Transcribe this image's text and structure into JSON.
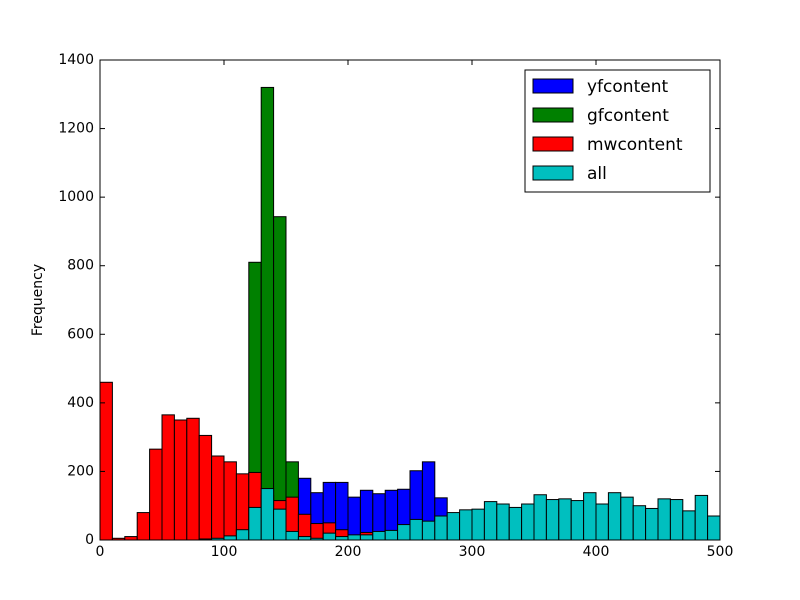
{
  "chart_data": {
    "type": "histogram",
    "bins": [
      0,
      10,
      20,
      30,
      40,
      50,
      60,
      70,
      80,
      90,
      100,
      110,
      120,
      130,
      140,
      150,
      160,
      170,
      180,
      190,
      200,
      210,
      220,
      230,
      240,
      250,
      260,
      270,
      280,
      290,
      300,
      310,
      320,
      330,
      340,
      350,
      360,
      370,
      380,
      390,
      400,
      410,
      420,
      430,
      440,
      450,
      460,
      470,
      480,
      490,
      500
    ],
    "series": [
      {
        "name": "yfcontent",
        "color": "#0000ff",
        "values": [
          0,
          0,
          0,
          0,
          0,
          0,
          0,
          0,
          0,
          0,
          0,
          0,
          0,
          0,
          0,
          110,
          180,
          138,
          168,
          168,
          125,
          145,
          135,
          145,
          148,
          202,
          228,
          123,
          0,
          0,
          0,
          0,
          0,
          0,
          0,
          0,
          0,
          0,
          0,
          0,
          0,
          0,
          0,
          0,
          0,
          0,
          0,
          0,
          0,
          0
        ]
      },
      {
        "name": "gfcontent",
        "color": "#008000",
        "values": [
          0,
          0,
          0,
          0,
          0,
          0,
          0,
          0,
          0,
          0,
          0,
          0,
          810,
          1320,
          943,
          228,
          0,
          0,
          0,
          0,
          0,
          0,
          0,
          0,
          0,
          0,
          0,
          0,
          0,
          0,
          0,
          0,
          0,
          0,
          0,
          0,
          0,
          0,
          0,
          0,
          0,
          0,
          0,
          0,
          0,
          0,
          0,
          0,
          0,
          0
        ]
      },
      {
        "name": "mwcontent",
        "color": "#ff0000",
        "values": [
          460,
          5,
          10,
          80,
          265,
          365,
          350,
          355,
          305,
          245,
          228,
          193,
          197,
          130,
          115,
          125,
          75,
          48,
          50,
          30,
          10,
          22,
          10,
          0,
          0,
          0,
          0,
          0,
          0,
          0,
          0,
          0,
          0,
          0,
          0,
          0,
          0,
          0,
          0,
          0,
          0,
          0,
          0,
          0,
          0,
          0,
          0,
          0,
          0,
          0
        ]
      },
      {
        "name": "all",
        "color": "#00bfbf",
        "values": [
          0,
          0,
          0,
          0,
          0,
          0,
          0,
          0,
          3,
          5,
          12,
          30,
          95,
          150,
          90,
          25,
          10,
          5,
          20,
          10,
          15,
          15,
          25,
          28,
          45,
          60,
          55,
          70,
          80,
          88,
          90,
          112,
          105,
          95,
          105,
          132,
          118,
          120,
          115,
          138,
          105,
          138,
          125,
          100,
          92,
          120,
          118,
          85,
          130,
          70
        ]
      }
    ],
    "ylabel": "Frequency",
    "xlim": [
      0,
      500
    ],
    "xticks": [
      0,
      100,
      200,
      300,
      400,
      500
    ],
    "ylim": [
      0,
      1400
    ],
    "yticks": [
      0,
      200,
      400,
      600,
      800,
      1000,
      1200,
      1400
    ],
    "legend": "upper right"
  }
}
